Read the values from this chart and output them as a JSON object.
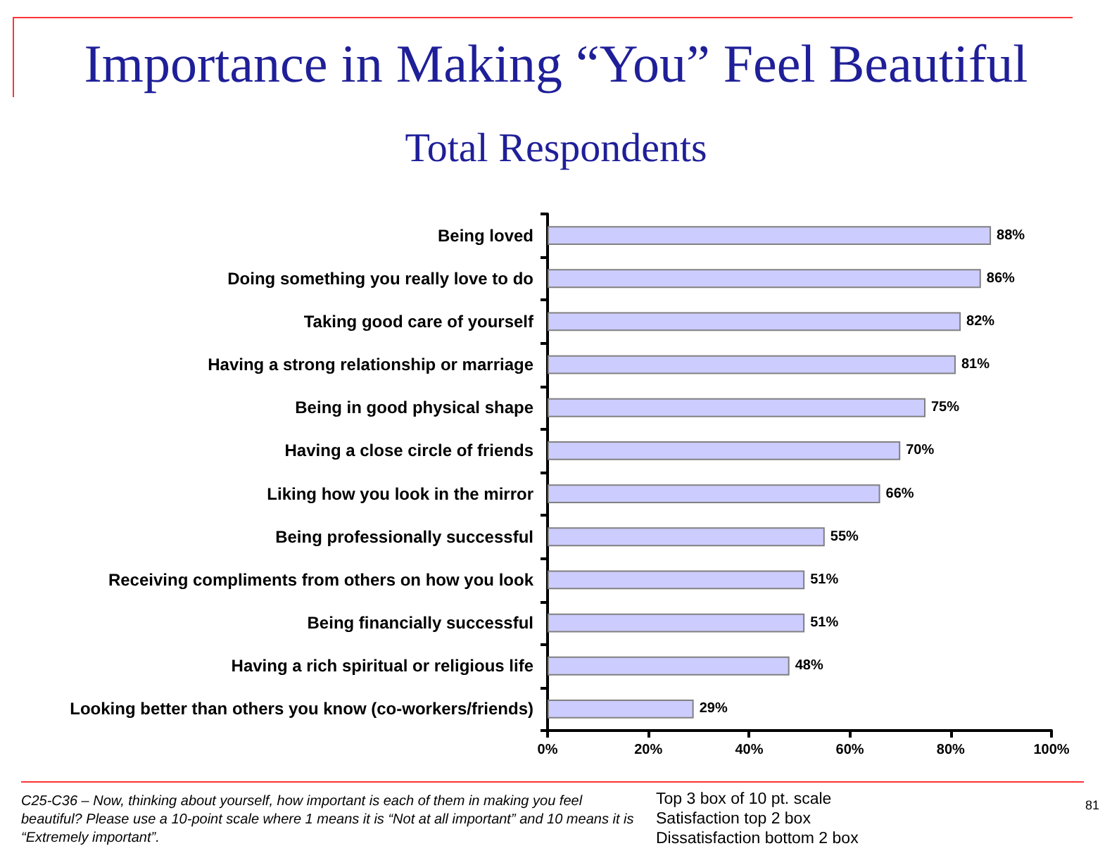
{
  "chart_data": {
    "type": "bar",
    "orientation": "horizontal",
    "title": "Importance in Making “You” Feel Beautiful",
    "subtitle": "Total Respondents",
    "categories": [
      "Being loved",
      "Doing something you really love to do",
      "Taking good care of yourself",
      "Having a strong relationship or marriage",
      "Being in good physical shape",
      "Having a close circle of friends",
      "Liking how you look in the mirror",
      "Being professionally successful",
      "Receiving compliments from others on how you look",
      "Being financially successful",
      "Having a rich spiritual or religious life",
      "Looking better than others you know (co-workers/friends)"
    ],
    "values": [
      88,
      86,
      82,
      81,
      75,
      70,
      66,
      55,
      51,
      51,
      48,
      29
    ],
    "value_labels": [
      "88%",
      "86%",
      "82%",
      "81%",
      "75%",
      "70%",
      "66%",
      "55%",
      "51%",
      "51%",
      "48%",
      "29%"
    ],
    "color": "#ccccff",
    "xlim": [
      0,
      100
    ],
    "xticks": [
      {
        "value": 0,
        "label": "0%"
      },
      {
        "value": 20,
        "label": "20%"
      },
      {
        "value": 40,
        "label": "40%"
      },
      {
        "value": 60,
        "label": "60%"
      },
      {
        "value": 80,
        "label": "80%"
      },
      {
        "value": 100,
        "label": "100%"
      }
    ],
    "grid": false,
    "annotations": [
      "C25-C36 – Now, thinking about yourself, how important is each of them in making you feel beautiful? Please use a 10-point scale where 1 means it is “Not at all important” and 10 means it is “Extremely important”.",
      "Top 3 box of 10 pt. scale",
      "Satisfaction top 2 box",
      "Dissatisfaction bottom 2 box",
      "81"
    ]
  }
}
